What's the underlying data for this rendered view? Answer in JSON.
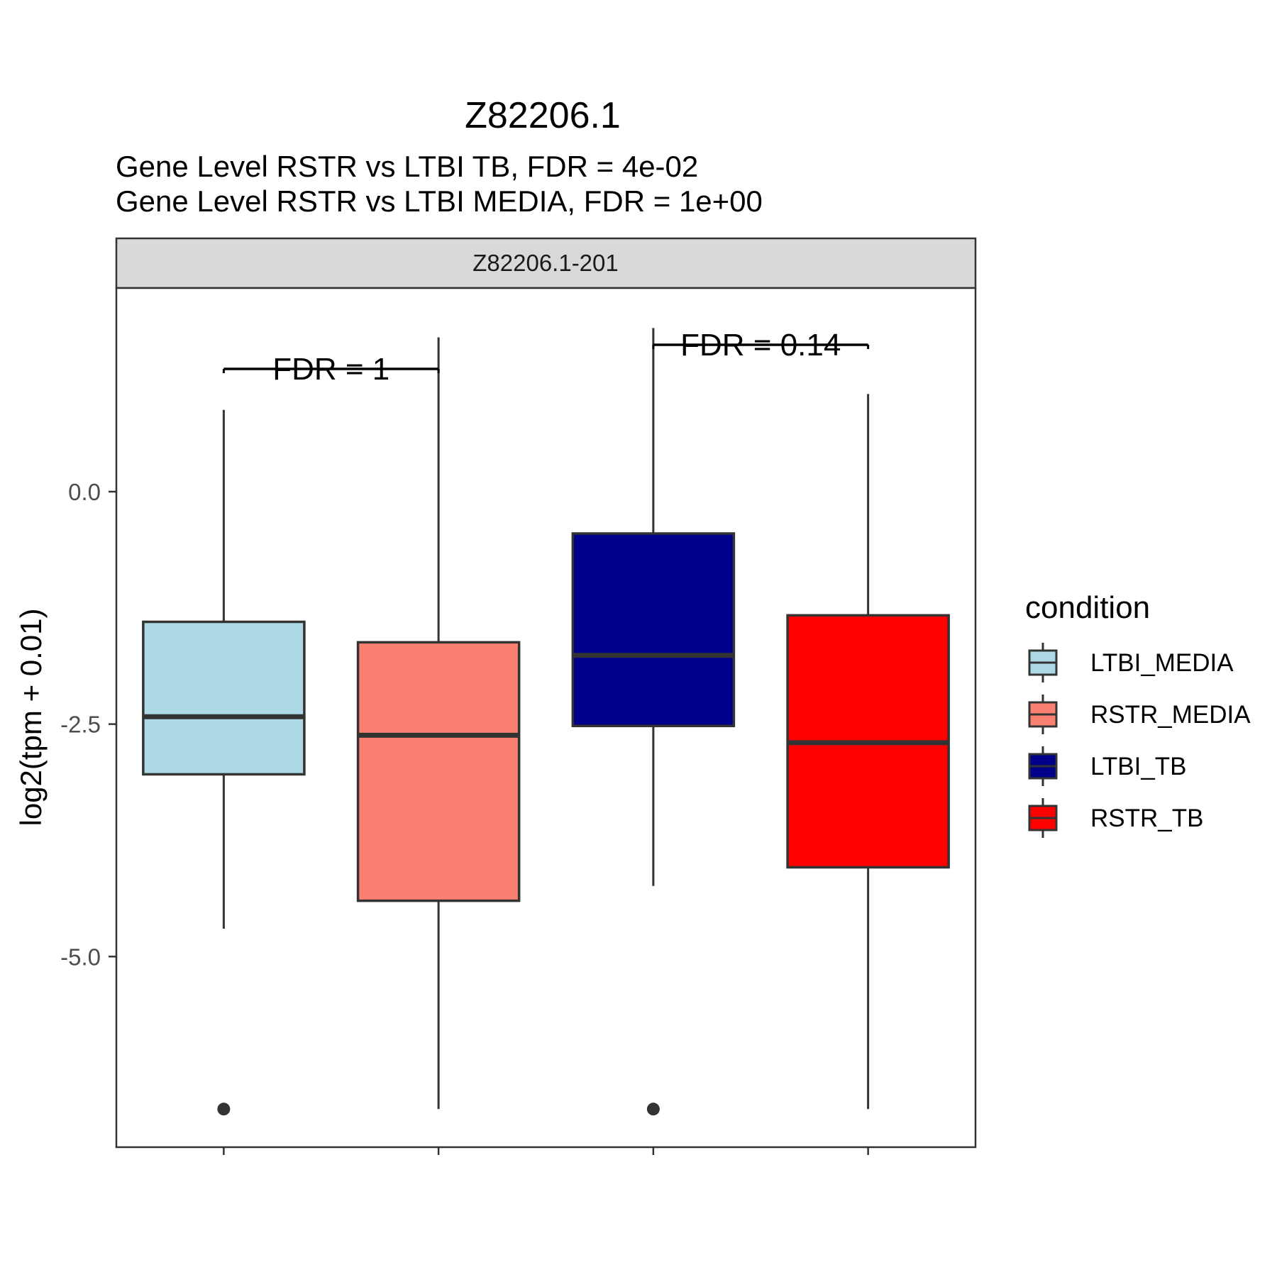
{
  "chart_data": {
    "type": "box",
    "title": "Z82206.1",
    "subtitle_lines": [
      "Gene Level RSTR vs LTBI TB, FDR =  4e-02",
      "Gene Level RSTR vs LTBI MEDIA, FDR =  1e+00"
    ],
    "facet_label": "Z82206.1-201",
    "ylabel": "log2(tpm + 0.01)",
    "xlabel": "",
    "ylim": [
      -7.05,
      2.19
    ],
    "y_ticks": [
      {
        "value": 0.0,
        "label": "0.0"
      },
      {
        "value": -2.5,
        "label": "-2.5"
      },
      {
        "value": -5.0,
        "label": "-5.0"
      }
    ],
    "grid": false,
    "legend": {
      "title": "condition",
      "position": "right",
      "entries": [
        {
          "label": "LTBI_MEDIA",
          "color": "#ADD8E6"
        },
        {
          "label": "RSTR_MEDIA",
          "color": "#FA8072"
        },
        {
          "label": "LTBI_TB",
          "color": "#00008B"
        },
        {
          "label": "RSTR_TB",
          "color": "#FF0000"
        }
      ]
    },
    "series": [
      {
        "name": "LTBI_MEDIA",
        "color": "#ADD8E6",
        "whisker_low": -4.7,
        "q1": -3.04,
        "median": -2.42,
        "q3": -1.4,
        "whisker_high": 0.88,
        "outliers": [
          -6.64
        ]
      },
      {
        "name": "RSTR_MEDIA",
        "color": "#FA8072",
        "whisker_low": -6.64,
        "q1": -4.4,
        "median": -2.62,
        "q3": -1.62,
        "whisker_high": 1.66,
        "outliers": []
      },
      {
        "name": "LTBI_TB",
        "color": "#00008B",
        "whisker_low": -4.24,
        "q1": -2.52,
        "median": -1.76,
        "q3": -0.45,
        "whisker_high": 1.76,
        "outliers": [
          -6.64
        ]
      },
      {
        "name": "RSTR_TB",
        "color": "#FF0000",
        "whisker_low": -6.64,
        "q1": -4.04,
        "median": -2.7,
        "q3": -1.33,
        "whisker_high": 1.05,
        "outliers": []
      }
    ],
    "annotations": [
      {
        "text": "FDR =  1",
        "from": 1,
        "to": 2,
        "y": 1.32
      },
      {
        "text": "FDR =  0.14",
        "from": 3,
        "to": 4,
        "y": 1.58
      }
    ]
  }
}
